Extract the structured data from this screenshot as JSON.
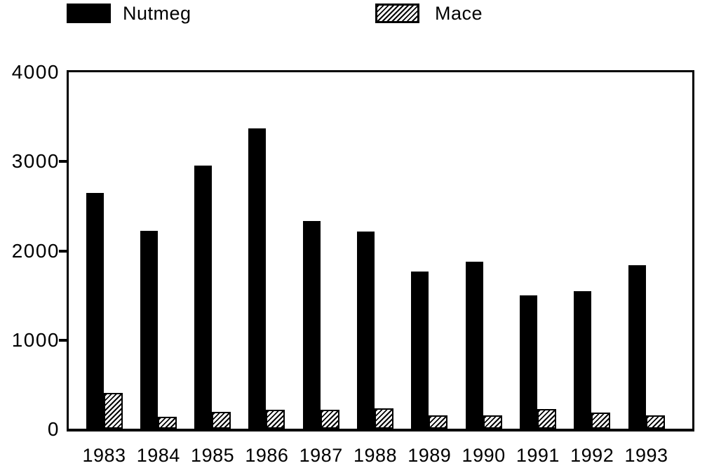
{
  "chart_data": {
    "type": "bar",
    "title": "",
    "xlabel": "",
    "ylabel": "",
    "categories": [
      "1983",
      "1984",
      "1985",
      "1986",
      "1987",
      "1988",
      "1989",
      "1990",
      "1991",
      "1992",
      "1993"
    ],
    "series": [
      {
        "name": "Nutmeg",
        "style": "solid-black",
        "values": [
          2640,
          2220,
          2950,
          3360,
          2330,
          2210,
          1760,
          1870,
          1490,
          1540,
          1830
        ]
      },
      {
        "name": "Mace",
        "style": "diagonal-hatch",
        "values": [
          400,
          130,
          190,
          210,
          210,
          230,
          150,
          150,
          220,
          180,
          150
        ]
      }
    ],
    "ylim": [
      0,
      4000
    ],
    "yticks": [
      0,
      1000,
      2000,
      3000,
      4000
    ],
    "grid": false,
    "legend_position": "top",
    "colors": {
      "foreground": "#000000",
      "background": "#ffffff"
    }
  }
}
